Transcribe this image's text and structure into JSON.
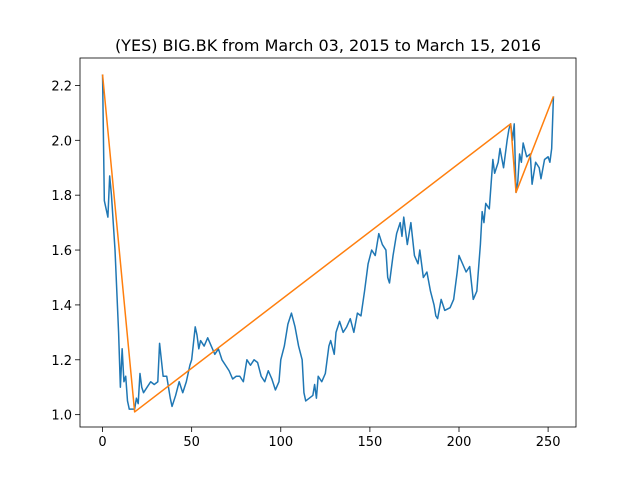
{
  "chart_data": {
    "type": "line",
    "title": "(YES) BIG.BK from March 03, 2015 to March 15, 2016",
    "xlim": [
      -12.65,
      265.65
    ],
    "ylim": [
      0.955,
      2.3
    ],
    "xticks": [
      0,
      50,
      100,
      150,
      200,
      250
    ],
    "yticks": [
      {
        "value": 1.0,
        "label": "1.0"
      },
      1.2,
      1.4,
      1.6,
      1.8,
      {
        "value": 2.0,
        "label": "2.0"
      },
      2.2
    ],
    "series": [
      {
        "color": "#1f77b4",
        "x": [
          0,
          1,
          3,
          4,
          5,
          7,
          9,
          10,
          11,
          12,
          13,
          14,
          15,
          18,
          19,
          20,
          21,
          22,
          23,
          25,
          27,
          29,
          31,
          32,
          33,
          34,
          36,
          38,
          39,
          41,
          43,
          45,
          47,
          49,
          50,
          52,
          53,
          54,
          55,
          57,
          59,
          61,
          63,
          65,
          67,
          69,
          71,
          73,
          75,
          77,
          79,
          81,
          83,
          85,
          87,
          89,
          91,
          93,
          95,
          97,
          99,
          100,
          102,
          104,
          106,
          108,
          110,
          112,
          113,
          114,
          116,
          118,
          119,
          120,
          121,
          123,
          125,
          127,
          128,
          130,
          131,
          133,
          135,
          137,
          139,
          141,
          143,
          145,
          147,
          149,
          151,
          153,
          155,
          157,
          159,
          160,
          161,
          163,
          165,
          167,
          168,
          169,
          171,
          173,
          175,
          177,
          178,
          180,
          182,
          184,
          186,
          187,
          188,
          190,
          192,
          195,
          197,
          199,
          200,
          202,
          204,
          206,
          208,
          210,
          212,
          213,
          214,
          215,
          217,
          219,
          220,
          222,
          223,
          225,
          227,
          228,
          229,
          230,
          231,
          232,
          233,
          234,
          235,
          236,
          238,
          240,
          241,
          243,
          245,
          246,
          248,
          250,
          251,
          252,
          253
        ],
        "values": [
          2.24,
          1.78,
          1.72,
          1.87,
          1.8,
          1.6,
          1.3,
          1.1,
          1.24,
          1.12,
          1.14,
          1.05,
          1.02,
          1.02,
          1.06,
          1.04,
          1.15,
          1.1,
          1.08,
          1.1,
          1.12,
          1.11,
          1.12,
          1.26,
          1.2,
          1.14,
          1.14,
          1.06,
          1.03,
          1.07,
          1.12,
          1.08,
          1.12,
          1.18,
          1.2,
          1.32,
          1.29,
          1.24,
          1.27,
          1.25,
          1.28,
          1.25,
          1.22,
          1.24,
          1.2,
          1.18,
          1.16,
          1.13,
          1.14,
          1.14,
          1.12,
          1.2,
          1.18,
          1.2,
          1.19,
          1.14,
          1.12,
          1.16,
          1.13,
          1.09,
          1.12,
          1.2,
          1.25,
          1.33,
          1.37,
          1.32,
          1.25,
          1.2,
          1.08,
          1.05,
          1.06,
          1.07,
          1.11,
          1.06,
          1.14,
          1.12,
          1.15,
          1.25,
          1.27,
          1.22,
          1.3,
          1.34,
          1.3,
          1.32,
          1.35,
          1.3,
          1.37,
          1.36,
          1.45,
          1.55,
          1.6,
          1.58,
          1.66,
          1.62,
          1.6,
          1.5,
          1.48,
          1.58,
          1.66,
          1.7,
          1.65,
          1.72,
          1.62,
          1.7,
          1.58,
          1.55,
          1.6,
          1.5,
          1.52,
          1.45,
          1.4,
          1.36,
          1.35,
          1.42,
          1.38,
          1.39,
          1.42,
          1.52,
          1.58,
          1.55,
          1.52,
          1.54,
          1.42,
          1.45,
          1.62,
          1.74,
          1.7,
          1.77,
          1.75,
          1.93,
          1.88,
          1.92,
          1.97,
          1.9,
          2.0,
          2.04,
          2.06,
          2.0,
          2.06,
          1.81,
          1.85,
          1.95,
          1.92,
          1.99,
          1.94,
          1.95,
          1.84,
          1.92,
          1.9,
          1.86,
          1.93,
          1.94,
          1.92,
          1.97,
          2.16
        ]
      },
      {
        "color": "#ff7f0e",
        "x": [
          0,
          18,
          229,
          232,
          253
        ],
        "values": [
          2.24,
          1.01,
          2.06,
          1.81,
          2.16
        ]
      }
    ]
  }
}
